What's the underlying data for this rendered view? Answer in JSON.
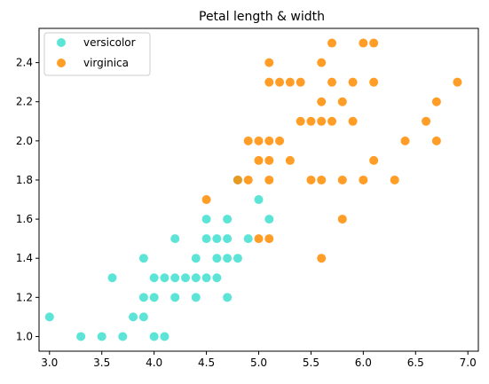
{
  "chart_data": {
    "type": "scatter",
    "title": "Petal length & width",
    "xlabel": "",
    "ylabel": "",
    "xlim": [
      2.9,
      7.1
    ],
    "ylim": [
      0.925,
      2.575
    ],
    "xticks": [
      3.0,
      3.5,
      4.0,
      4.5,
      5.0,
      5.5,
      6.0,
      6.5,
      7.0
    ],
    "xtick_labels": [
      "3.0",
      "3.5",
      "4.0",
      "4.5",
      "5.0",
      "5.5",
      "6.0",
      "6.5",
      "7.0"
    ],
    "yticks": [
      1.0,
      1.2,
      1.4,
      1.6,
      1.8,
      2.0,
      2.2,
      2.4
    ],
    "ytick_labels": [
      "1.0",
      "1.2",
      "1.4",
      "1.6",
      "1.8",
      "2.0",
      "2.2",
      "2.4"
    ],
    "grid": false,
    "legend_position": "top-left",
    "series": [
      {
        "name": "versicolor",
        "color": "#40e0d0",
        "points": [
          [
            3.0,
            1.1
          ],
          [
            3.3,
            1.0
          ],
          [
            3.5,
            1.0
          ],
          [
            3.6,
            1.3
          ],
          [
            3.7,
            1.0
          ],
          [
            3.8,
            1.1
          ],
          [
            3.9,
            1.1
          ],
          [
            3.9,
            1.2
          ],
          [
            3.9,
            1.4
          ],
          [
            4.0,
            1.0
          ],
          [
            4.0,
            1.2
          ],
          [
            4.0,
            1.3
          ],
          [
            4.1,
            1.0
          ],
          [
            4.1,
            1.3
          ],
          [
            4.2,
            1.2
          ],
          [
            4.2,
            1.3
          ],
          [
            4.2,
            1.5
          ],
          [
            4.3,
            1.3
          ],
          [
            4.4,
            1.2
          ],
          [
            4.4,
            1.3
          ],
          [
            4.4,
            1.4
          ],
          [
            4.5,
            1.3
          ],
          [
            4.5,
            1.5
          ],
          [
            4.5,
            1.6
          ],
          [
            4.6,
            1.3
          ],
          [
            4.6,
            1.4
          ],
          [
            4.6,
            1.5
          ],
          [
            4.7,
            1.2
          ],
          [
            4.7,
            1.4
          ],
          [
            4.7,
            1.5
          ],
          [
            4.7,
            1.6
          ],
          [
            4.8,
            1.4
          ],
          [
            4.8,
            1.8
          ],
          [
            4.9,
            1.5
          ],
          [
            5.0,
            1.7
          ],
          [
            5.1,
            1.6
          ]
        ]
      },
      {
        "name": "virginica",
        "color": "#ff8c00",
        "points": [
          [
            4.5,
            1.7
          ],
          [
            4.8,
            1.8
          ],
          [
            4.9,
            1.8
          ],
          [
            4.9,
            2.0
          ],
          [
            5.0,
            1.5
          ],
          [
            5.0,
            1.9
          ],
          [
            5.0,
            2.0
          ],
          [
            5.1,
            1.5
          ],
          [
            5.1,
            1.8
          ],
          [
            5.1,
            1.9
          ],
          [
            5.1,
            2.0
          ],
          [
            5.1,
            2.3
          ],
          [
            5.1,
            2.4
          ],
          [
            5.2,
            2.0
          ],
          [
            5.2,
            2.3
          ],
          [
            5.3,
            1.9
          ],
          [
            5.3,
            2.3
          ],
          [
            5.4,
            2.1
          ],
          [
            5.4,
            2.3
          ],
          [
            5.5,
            1.8
          ],
          [
            5.5,
            2.1
          ],
          [
            5.6,
            1.4
          ],
          [
            5.6,
            1.8
          ],
          [
            5.6,
            2.1
          ],
          [
            5.6,
            2.2
          ],
          [
            5.6,
            2.4
          ],
          [
            5.7,
            2.1
          ],
          [
            5.7,
            2.3
          ],
          [
            5.7,
            2.5
          ],
          [
            5.8,
            1.6
          ],
          [
            5.8,
            1.8
          ],
          [
            5.8,
            2.2
          ],
          [
            5.9,
            2.1
          ],
          [
            5.9,
            2.3
          ],
          [
            6.0,
            1.8
          ],
          [
            6.0,
            2.5
          ],
          [
            6.1,
            1.9
          ],
          [
            6.1,
            2.3
          ],
          [
            6.1,
            2.5
          ],
          [
            6.3,
            1.8
          ],
          [
            6.4,
            2.0
          ],
          [
            6.6,
            2.1
          ],
          [
            6.7,
            2.0
          ],
          [
            6.7,
            2.2
          ],
          [
            6.9,
            2.3
          ]
        ]
      }
    ]
  }
}
